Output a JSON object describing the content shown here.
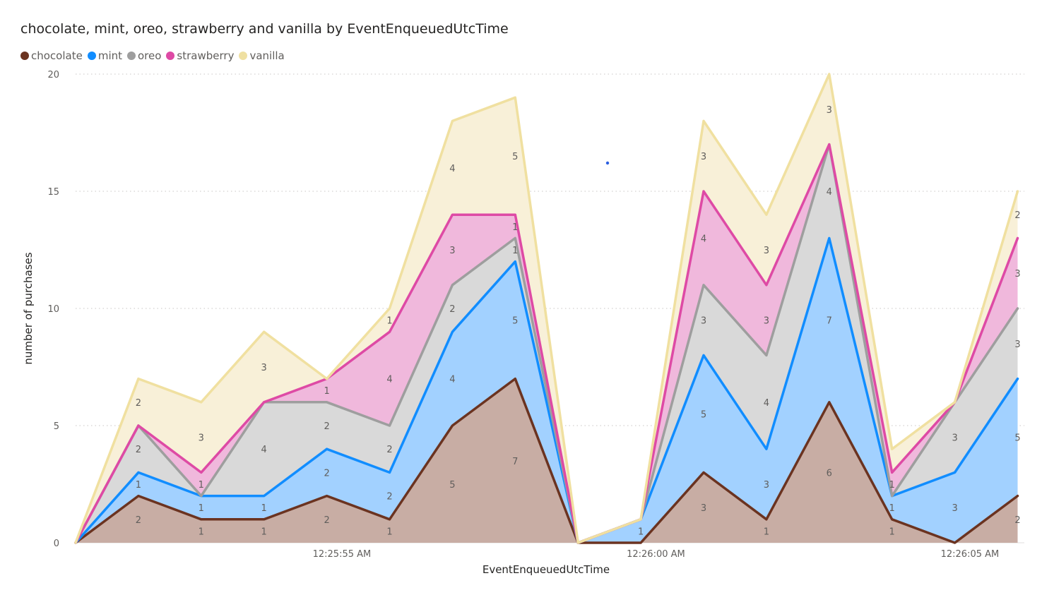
{
  "chart_data": {
    "type": "area",
    "stacked": true,
    "title": "chocolate, mint, oreo, strawberry and vanilla by EventEnqueuedUtcTime",
    "xlabel": "EventEnqueuedUtcTime",
    "ylabel": "number of purchases",
    "ylim": [
      0,
      20
    ],
    "yticks": [
      0,
      5,
      10,
      15,
      20
    ],
    "xtick_labels": [
      "12:25:55 AM",
      "12:26:00 AM",
      "12:26:05 AM"
    ],
    "xtick_points": [
      4,
      9,
      14
    ],
    "grid": true,
    "legend_position": "top-left",
    "num_points": 16,
    "series": [
      {
        "name": "chocolate",
        "color": "#6b3320",
        "fill": "#c8ada4",
        "values": [
          0,
          2,
          1,
          1,
          2,
          1,
          5,
          7,
          0,
          0,
          3,
          1,
          6,
          1,
          0,
          2
        ],
        "labels": [
          "",
          "2",
          "1",
          "1",
          "2",
          "1",
          "5",
          "7",
          "",
          "",
          "3",
          "1",
          "6",
          "1",
          "",
          "2"
        ]
      },
      {
        "name": "mint",
        "color": "#118dff",
        "fill": "#a2d1ff",
        "values": [
          0,
          1,
          1,
          1,
          2,
          2,
          4,
          5,
          0,
          1,
          5,
          3,
          7,
          1,
          3,
          5
        ],
        "labels": [
          "",
          "1",
          "1",
          "1",
          "2",
          "2",
          "4",
          "5",
          "",
          "1",
          "5",
          "3",
          "7",
          "1",
          "3",
          "5"
        ]
      },
      {
        "name": "oreo",
        "color": "#9e9e9e",
        "fill": "#d9d9d9",
        "values": [
          0,
          2,
          0,
          4,
          2,
          2,
          2,
          1,
          0,
          0,
          3,
          4,
          4,
          0,
          3,
          3
        ],
        "labels": [
          "",
          "2",
          "",
          "4",
          "2",
          "2",
          "2",
          "1",
          "",
          "",
          "3",
          "4",
          "4",
          "",
          "3",
          "3"
        ]
      },
      {
        "name": "strawberry",
        "color": "#de4aa5",
        "fill": "#f0b8dc",
        "values": [
          0,
          0,
          1,
          0,
          1,
          4,
          3,
          1,
          0,
          0,
          4,
          3,
          0,
          1,
          0,
          3
        ],
        "labels": [
          "",
          "",
          "1",
          "",
          "1",
          "4",
          "3",
          "1",
          "",
          "",
          "4",
          "3",
          "",
          "1",
          "",
          "3"
        ]
      },
      {
        "name": "vanilla",
        "color": "#f0e0a0",
        "fill": "#f8f0d8",
        "values": [
          0,
          2,
          3,
          3,
          0,
          1,
          4,
          5,
          0,
          0,
          3,
          3,
          3,
          1,
          0,
          2
        ],
        "labels": [
          "",
          "2",
          "3",
          "3",
          "",
          "1",
          "4",
          "5",
          "",
          "",
          "3",
          "3",
          "3",
          "",
          "",
          "2"
        ]
      }
    ]
  }
}
